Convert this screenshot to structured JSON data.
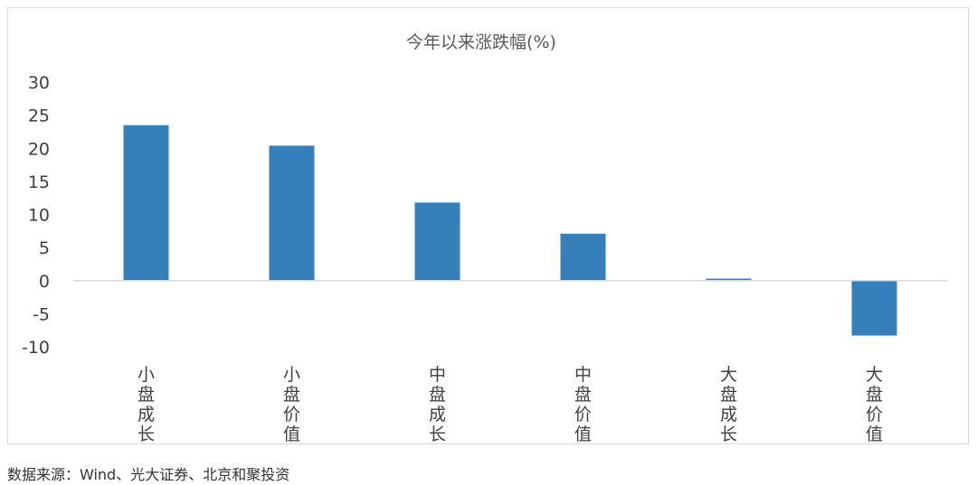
{
  "chart_data": {
    "type": "bar",
    "title": "今年以来涨跌幅(%)",
    "categories": [
      "小盘成长",
      "小盘价值",
      "中盘成长",
      "中盘价值",
      "大盘成长",
      "大盘价值"
    ],
    "values": [
      23.5,
      20.4,
      11.8,
      7.1,
      0.3,
      -8.3
    ],
    "ylim": [
      -10,
      30
    ],
    "yticks": [
      "30",
      "25",
      "20",
      "15",
      "10",
      "5",
      "0",
      "-5",
      "-10"
    ],
    "bar_color": "#3580BB",
    "axis_color": "#D9D9D9",
    "grid": false,
    "legend": "none"
  },
  "footer": {
    "source": "数据来源：Wind、光大证券、北京和聚投资"
  }
}
